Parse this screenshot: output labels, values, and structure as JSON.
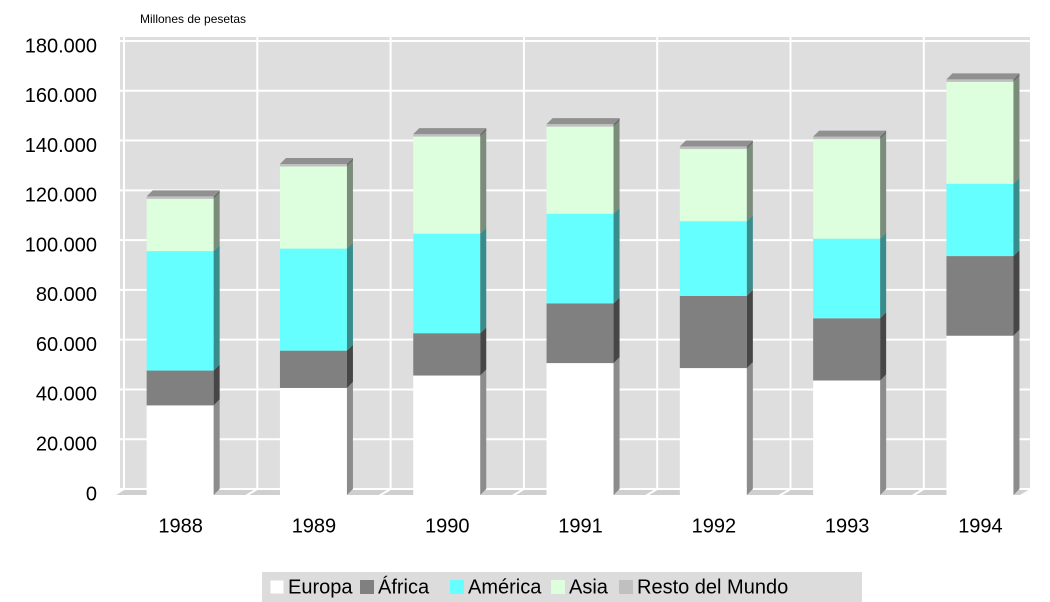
{
  "chart_data": {
    "type": "bar3d-stacked",
    "y_axis_label": "Millones de pesetas",
    "categories": [
      "1988",
      "1989",
      "1990",
      "1991",
      "1992",
      "1993",
      "1994"
    ],
    "series": [
      {
        "name": "Europa",
        "color": "#ffffff",
        "values": [
          36000,
          43000,
          48000,
          53000,
          51000,
          46000,
          64000
        ]
      },
      {
        "name": "África",
        "color": "#808080",
        "values": [
          14000,
          15000,
          17000,
          24000,
          29000,
          25000,
          32000
        ]
      },
      {
        "name": "América",
        "color": "#66ffff",
        "values": [
          48000,
          41000,
          40000,
          36000,
          30000,
          32000,
          29000
        ]
      },
      {
        "name": "Asia",
        "color": "#ddffdd",
        "values": [
          21000,
          33000,
          39000,
          35000,
          29000,
          40000,
          41000
        ]
      },
      {
        "name": "Resto del Mundo",
        "color": "#c0c0c0",
        "values": [
          1000,
          1000,
          1000,
          1000,
          1000,
          1000,
          1000
        ]
      }
    ],
    "ylim": [
      0,
      180000
    ],
    "yticks": [
      0,
      {
        "value": 20000,
        "label": "20.000"
      },
      {
        "value": 40000,
        "label": "40.000"
      },
      {
        "value": 60000,
        "label": "60.000"
      },
      {
        "value": 80000,
        "label": "80.000"
      },
      {
        "value": 100000,
        "label": "100.000"
      },
      {
        "value": 120000,
        "label": "120.000"
      },
      {
        "value": 140000,
        "label": "140.000"
      },
      {
        "value": 160000,
        "label": "160.000"
      },
      {
        "value": 180000,
        "label": "180.000"
      }
    ],
    "grid": true
  }
}
